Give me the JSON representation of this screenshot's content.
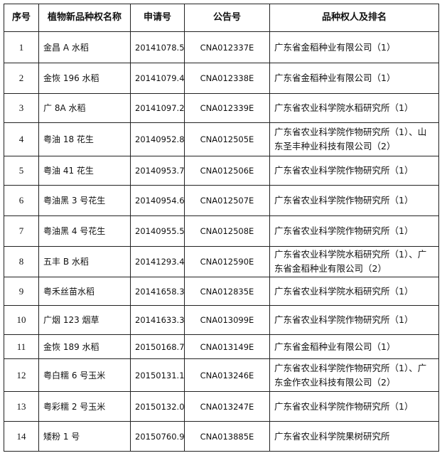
{
  "table": {
    "headers": [
      "序号",
      "植物新品种权名称",
      "申请号",
      "公告号",
      "品种权人及排名"
    ],
    "rows": [
      {
        "no": "1",
        "name": "金昌 A 水稻",
        "app": "20141078.5",
        "pub": "CNA012337E",
        "owner": "广东省金稻种业有限公司（1）"
      },
      {
        "no": "2",
        "name": "金恢 196 水稻",
        "app": "20141079.4",
        "pub": "CNA012338E",
        "owner": "广东省金稻种业有限公司（1）"
      },
      {
        "no": "3",
        "name": "广 8A 水稻",
        "app": "20141097.2",
        "pub": "CNA012339E",
        "owner": "广东省农业科学院水稻研究所（1）"
      },
      {
        "no": "4",
        "name": "粤油 18 花生",
        "app": "20140952.8",
        "pub": "CNA012505E",
        "owner": "广东省农业科学院作物研究所（1）、山东圣丰种业科技有限公司（2）"
      },
      {
        "no": "5",
        "name": "粤油 41 花生",
        "app": "20140953.7",
        "pub": "CNA012506E",
        "owner": "广东省农业科学院作物研究所（1）"
      },
      {
        "no": "6",
        "name": "粤油黑 3 号花生",
        "app": "20140954.6",
        "pub": "CNA012507E",
        "owner": "广东省农业科学院作物研究所（1）"
      },
      {
        "no": "7",
        "name": "粤油黑 4 号花生",
        "app": "20140955.5",
        "pub": "CNA012508E",
        "owner": "广东省农业科学院作物研究所（1）"
      },
      {
        "no": "8",
        "name": "五丰 B 水稻",
        "app": "20141293.4",
        "pub": "CNA012590E",
        "owner": "广东省农业科学院水稻研究所（1）、广东省金稻种业有限公司（2）"
      },
      {
        "no": "9",
        "name": "粤禾丝苗水稻",
        "app": "20141658.3",
        "pub": "CNA012835E",
        "owner": "广东省农业科学院水稻研究所（1）"
      },
      {
        "no": "10",
        "name": "广烟 123 烟草",
        "app": "20141633.3",
        "pub": "CNA013099E",
        "owner": "广东省农业科学院作物研究所（1）"
      },
      {
        "no": "11",
        "name": "金恢 189 水稻",
        "app": "20150168.7",
        "pub": "CNA013149E",
        "owner": "广东省金稻种业有限公司（1）"
      },
      {
        "no": "12",
        "name": "粤白糯 6 号玉米",
        "app": "20150131.1",
        "pub": "CNA013246E",
        "owner": "广东省农业科学院作物研究所（1）、广东金作农业科技有限公司（2）"
      },
      {
        "no": "13",
        "name": "粤彩糯 2 号玉米",
        "app": "20150132.0",
        "pub": "CNA013247E",
        "owner": "广东省农业科学院作物研究所（1）"
      },
      {
        "no": "14",
        "name": "矮粉 1 号",
        "app": "20150760.9",
        "pub": "CNA013885E",
        "owner": "广东省农业科学院果树研究所"
      }
    ]
  }
}
